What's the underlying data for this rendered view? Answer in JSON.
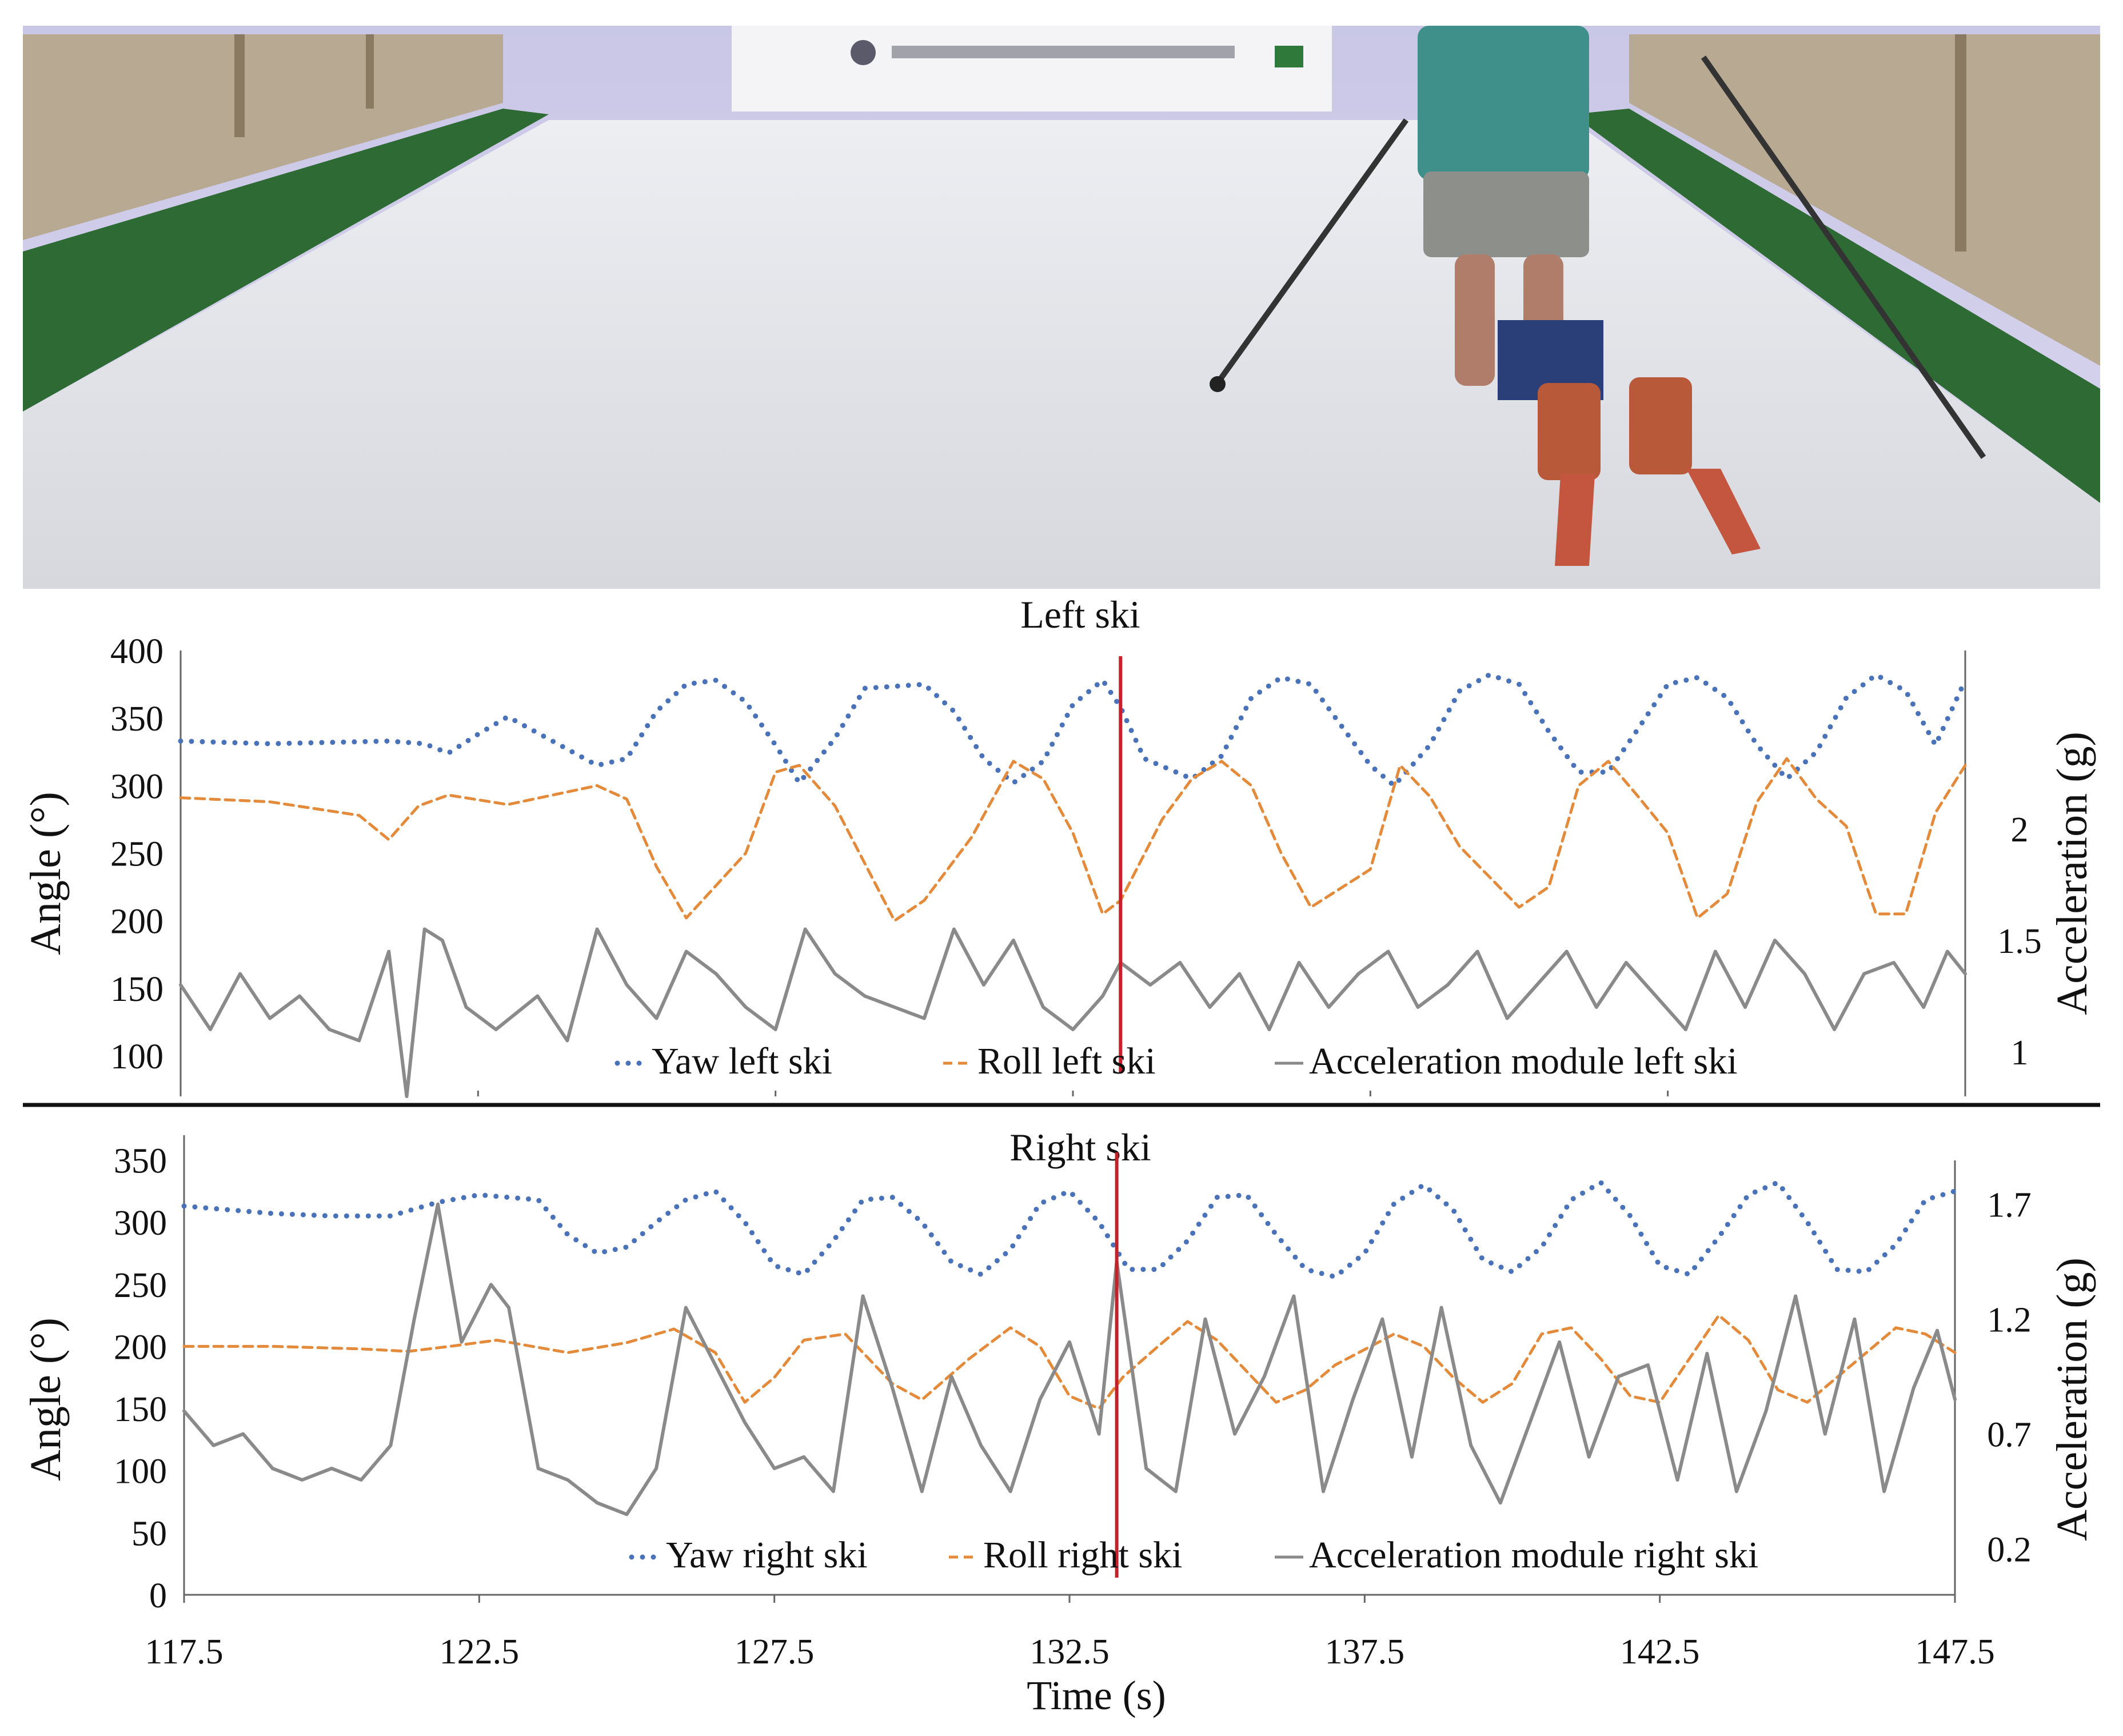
{
  "chart_data": [
    {
      "type": "line",
      "title": "Left ski",
      "ylabel": "Angle (°)",
      "y2label": "Acceleration (g)",
      "ylim": [
        70,
        400
      ],
      "y2lim": [
        0.8,
        2.8
      ],
      "y_ticks": [
        100,
        150,
        200,
        250,
        300,
        350,
        400
      ],
      "y2_ticks": [
        1,
        1.5,
        2
      ],
      "legend_position": "bottom",
      "annotation_time": 133.3,
      "series": [
        {
          "name": "Yaw left ski",
          "style": "dotted",
          "color": "#4a72b8",
          "axis": "left",
          "x": [
            117.5,
            119,
            121,
            121.6,
            122,
            122.5,
            123,
            124.5,
            125,
            125.5,
            126,
            126.5,
            127,
            127.5,
            127.9,
            128.5,
            129,
            130,
            130.5,
            131,
            131.5,
            132,
            132.5,
            133,
            133.3,
            133.7,
            134.5,
            135,
            135.5,
            136,
            136.5,
            137,
            137.5,
            137.9,
            138.5,
            139,
            139.5,
            140,
            140.5,
            141,
            141.5,
            142,
            142.5,
            143,
            143.5,
            144,
            144.5,
            145,
            145.5,
            146,
            146.5,
            147,
            147.5
          ],
          "values": [
            333,
            331,
            333,
            331,
            324,
            338,
            351,
            315,
            320,
            355,
            375,
            378,
            362,
            330,
            302,
            335,
            372,
            375,
            355,
            320,
            302,
            318,
            360,
            378,
            358,
            320,
            305,
            322,
            365,
            380,
            375,
            345,
            315,
            300,
            330,
            370,
            382,
            375,
            340,
            310,
            310,
            342,
            375,
            380,
            365,
            330,
            305,
            325,
            365,
            382,
            370,
            330,
            378
          ]
        },
        {
          "name": "Roll left ski",
          "style": "dashed",
          "color": "#e38a3b",
          "axis": "left",
          "x": [
            117.5,
            119,
            120.5,
            121,
            121.5,
            122,
            123,
            124.5,
            125,
            125.5,
            126,
            127,
            127.5,
            127.9,
            128.5,
            129.5,
            130,
            130.8,
            131.5,
            132,
            132.5,
            133,
            133.3,
            134,
            134.5,
            135,
            135.5,
            136,
            136.5,
            137.5,
            138,
            138.5,
            139,
            140,
            140.5,
            141,
            141.5,
            142,
            142.5,
            143,
            143.5,
            144,
            144.5,
            145,
            145.5,
            146,
            146.5,
            147,
            147.5
          ],
          "values": [
            291,
            288,
            278,
            260,
            285,
            293,
            286,
            300,
            290,
            240,
            202,
            250,
            310,
            315,
            285,
            200,
            215,
            262,
            318,
            305,
            265,
            205,
            215,
            275,
            305,
            318,
            300,
            250,
            210,
            238,
            315,
            292,
            255,
            210,
            225,
            300,
            318,
            292,
            265,
            202,
            220,
            288,
            320,
            290,
            270,
            205,
            205,
            280,
            315
          ]
        },
        {
          "name": "Acceleration module left ski",
          "style": "solid",
          "color": "#8a8a8a",
          "axis": "right",
          "x": [
            117.5,
            118,
            118.5,
            119,
            119.5,
            120,
            120.5,
            121,
            121.3,
            121.6,
            121.9,
            122.3,
            122.8,
            123.5,
            124,
            124.5,
            125,
            125.5,
            126,
            126.5,
            127,
            127.5,
            128,
            128.5,
            129,
            129.5,
            130,
            130.5,
            131,
            131.5,
            132,
            132.5,
            133,
            133.3,
            133.8,
            134.3,
            134.8,
            135.3,
            135.8,
            136.3,
            136.8,
            137.3,
            137.8,
            138.3,
            138.8,
            139.3,
            139.8,
            140.3,
            140.8,
            141.3,
            141.8,
            142.3,
            142.8,
            143.3,
            143.8,
            144.3,
            144.8,
            145.3,
            145.8,
            146.3,
            146.8,
            147.2,
            147.5
          ],
          "values": [
            1.3,
            1.1,
            1.35,
            1.15,
            1.25,
            1.1,
            1.05,
            1.45,
            0.8,
            1.55,
            1.5,
            1.2,
            1.1,
            1.25,
            1.05,
            1.55,
            1.3,
            1.15,
            1.45,
            1.35,
            1.2,
            1.1,
            1.55,
            1.35,
            1.25,
            1.2,
            1.15,
            1.55,
            1.3,
            1.5,
            1.2,
            1.1,
            1.25,
            1.4,
            1.3,
            1.4,
            1.2,
            1.35,
            1.1,
            1.4,
            1.2,
            1.35,
            1.45,
            1.2,
            1.3,
            1.45,
            1.15,
            1.3,
            1.45,
            1.2,
            1.4,
            1.25,
            1.1,
            1.45,
            1.2,
            1.5,
            1.35,
            1.1,
            1.35,
            1.4,
            1.2,
            1.45,
            1.35
          ]
        }
      ]
    },
    {
      "type": "line",
      "title": "Right ski",
      "xlabel": "Time (s)",
      "ylabel": "Angle (°)",
      "y2label": "Acceleration (g)",
      "xlim": [
        117.5,
        147.5
      ],
      "x_ticks": [
        117.5,
        122.5,
        127.5,
        132.5,
        137.5,
        142.5,
        147.5
      ],
      "ylim": [
        0,
        370
      ],
      "y2lim": [
        0.0,
        2.0
      ],
      "y_ticks": [
        0,
        50,
        100,
        150,
        200,
        250,
        300,
        350
      ],
      "y2_ticks": [
        0.2,
        0.7,
        1.2,
        1.7
      ],
      "legend_position": "bottom",
      "annotation_time": 133.3,
      "series": [
        {
          "name": "Yaw right ski",
          "style": "dotted",
          "color": "#4a72b8",
          "axis": "left",
          "x": [
            117.5,
            119,
            120,
            121,
            121.8,
            122.5,
            123.5,
            124,
            124.5,
            125,
            125.5,
            126,
            126.5,
            127,
            127.5,
            128,
            128.5,
            129,
            129.5,
            130,
            130.5,
            131,
            131.5,
            132,
            132.5,
            133,
            133.5,
            134,
            134.5,
            135,
            135.5,
            136,
            136.5,
            137,
            137.5,
            138,
            138.5,
            139,
            139.5,
            140,
            140.5,
            141,
            141.5,
            142,
            142.5,
            143,
            143.5,
            144,
            144.5,
            145,
            145.5,
            146,
            146.5,
            147,
            147.5
          ],
          "values": [
            313,
            307,
            305,
            305,
            316,
            322,
            318,
            290,
            275,
            280,
            300,
            318,
            325,
            300,
            265,
            258,
            285,
            318,
            320,
            300,
            268,
            258,
            278,
            315,
            325,
            300,
            262,
            262,
            285,
            320,
            322,
            290,
            262,
            256,
            275,
            315,
            330,
            310,
            270,
            260,
            280,
            318,
            332,
            305,
            265,
            258,
            288,
            322,
            332,
            300,
            262,
            260,
            282,
            318,
            325
          ]
        },
        {
          "name": "Roll right ski",
          "style": "dashed",
          "color": "#e38a3b",
          "axis": "left",
          "x": [
            117.5,
            119,
            120.5,
            121.3,
            122,
            122.8,
            124,
            125,
            125.8,
            126.5,
            127,
            127.5,
            128,
            128.7,
            129.5,
            130,
            130.8,
            131.5,
            132,
            132.5,
            133,
            133.4,
            134,
            134.5,
            135,
            135.5,
            136,
            136.5,
            137,
            138,
            138.5,
            139,
            139.5,
            140,
            140.5,
            141,
            141.5,
            142,
            142.5,
            143,
            143.5,
            144,
            144.5,
            145,
            145.5,
            146,
            146.5,
            147,
            147.5
          ],
          "values": [
            200,
            200,
            198,
            196,
            200,
            205,
            195,
            203,
            214,
            195,
            155,
            175,
            205,
            210,
            170,
            157,
            190,
            215,
            200,
            160,
            150,
            175,
            200,
            220,
            205,
            180,
            155,
            165,
            185,
            210,
            200,
            175,
            155,
            170,
            210,
            215,
            190,
            160,
            155,
            190,
            225,
            205,
            165,
            155,
            175,
            195,
            215,
            210,
            195
          ]
        },
        {
          "name": "Acceleration module right ski",
          "style": "solid",
          "color": "#8a8a8a",
          "axis": "right",
          "x": [
            117.5,
            118,
            118.5,
            119,
            119.5,
            120,
            120.5,
            121,
            121.4,
            121.8,
            122.2,
            122.7,
            123,
            123.5,
            124,
            124.5,
            125,
            125.5,
            126,
            126.5,
            127,
            127.5,
            128,
            128.5,
            129,
            129.5,
            130,
            130.5,
            131,
            131.5,
            132,
            132.5,
            133,
            133.3,
            133.8,
            134.3,
            134.8,
            135.3,
            135.8,
            136.3,
            136.8,
            137.3,
            137.8,
            138.3,
            138.8,
            139.3,
            139.8,
            140.3,
            140.8,
            141.3,
            141.8,
            142.3,
            142.8,
            143.3,
            143.8,
            144.3,
            144.8,
            145.3,
            145.8,
            146.3,
            146.8,
            147.2,
            147.5
          ],
          "values": [
            0.8,
            0.65,
            0.7,
            0.55,
            0.5,
            0.55,
            0.5,
            0.65,
            1.2,
            1.7,
            1.1,
            1.35,
            1.25,
            0.55,
            0.5,
            0.4,
            0.35,
            0.55,
            1.25,
            1.0,
            0.75,
            0.55,
            0.6,
            0.45,
            1.3,
            0.9,
            0.45,
            0.95,
            0.65,
            0.45,
            0.85,
            1.1,
            0.7,
            1.45,
            0.55,
            0.45,
            1.2,
            0.7,
            0.95,
            1.3,
            0.45,
            0.85,
            1.2,
            0.6,
            1.25,
            0.65,
            0.4,
            0.75,
            1.1,
            0.6,
            0.95,
            1.0,
            0.5,
            1.05,
            0.45,
            0.8,
            1.3,
            0.7,
            1.2,
            0.45,
            0.9,
            1.15,
            0.85
          ]
        }
      ]
    }
  ]
}
